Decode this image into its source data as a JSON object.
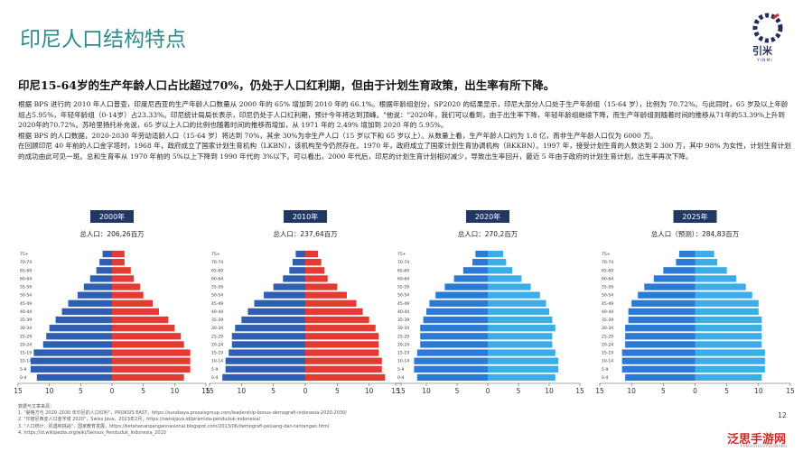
{
  "title": "印尼人口结构特点",
  "logo": {
    "name": "引米",
    "latin": "YINMI"
  },
  "subtitle": "印尼15-64岁的生产年龄人口占比超过70%，仍处于人口红利期，但由于计划生育政策，出生率有所下降。",
  "paragraphs": [
    "根据 BPS 进行的 2010 年人口普查，印度尼西亚的生产年龄人口数量从 2000 年的 65% 增加到 2010 年的 66.1%。根据年龄组划分，SP2020 的结果显示，印尼大部分人口处于生产年龄组（15-64 岁），比例为 70.72%。与此同时，65 岁及以上年龄组占5.95%，年轻年龄组（0-14岁）占23.33%。印尼统计局局长表示，印尼仍处于人口红利期，预计今年将达到顶峰。\"他说：\"2020年，我们可以看到，由于出生率下降，年轻年龄组继续下降，而生产年龄组则随着时间的推移从71年的53.39%上升到2020年的70.72%。苏哈里扬托补充说，65 岁以上人口的比例也随着时间的推移而增加，从 1971 年的 2.49% 增加到 2020 年的 5.95%。",
    "根据 BPS 的人口数据，2020-2030 年劳动适龄人口（15-64 岁）将达到 70%，其余 30%为非生产人口（15 岁以下和 65 岁以上）。从数量上看，生产年龄人口约为 1.8 亿，而非生产年龄人口仅为 6000 万。",
    "在回顾印尼 40 年前的人口金字塔时，1968 年，政府成立了国家计划生育机构（LKBN），该机构至今仍然存在。1970 年，政府成立了国家计划生育协调机构（BKKBN）。1997 年，接受计划生育的人数达到 2 300 万，其中 98% 为女性，计划生育计划的成功由此可见一斑。总和生育率从 1970 年前的 5%以上下降到 1990 年代的 3%以下。可以看出，2000 年代后，印尼的计划生育计划相对减少，导致出生率回升，最近 5 年由于政府的计划生育计划，出生率再次下降。"
  ],
  "sources": {
    "heading": "数据与文章来源：",
    "items": [
      "1. \"婴格方与 2020–2030 年印尼的人口红利\"，PROKSIS EAST，https://surabaya.proxsisgroup.com/leadership-bonus-demografi-indonesia-2020-2030/",
      "2. \"印度尼西亚人口金字塔 2020\"，Swiss Java，2023年2月，https://swissjava.id/piramida-penduduk-indonesia/",
      "3. \"人口统计、机遇和挑战\"，国家教育发展，https://ketahananpangannasional.blogspot.com/2013/06/demografi-peluang-dan-tantangan.html",
      "4. https://id.wikipedia.org/wiki/Sensus_Penduduk_Indonesia_2010"
    ]
  },
  "page_number": "12",
  "watermark": {
    "name": "泛思手游网",
    "latin": "FANSISHOUYOUWANG"
  },
  "chart_data": [
    {
      "type": "pyramid",
      "title": "2000年",
      "subtitle": "总人口：206,26百万",
      "categories": [
        "0-4",
        "5-9",
        "10-14",
        "15-19",
        "20-24",
        "25-29",
        "30-34",
        "35-39",
        "40-44",
        "45-49",
        "50-54",
        "55-59",
        "60-64",
        "65-69",
        "70-74",
        "75+"
      ],
      "series": [
        {
          "color": "#2f5fb3",
          "values": [
            -12,
            -13,
            -13,
            -12.5,
            -11,
            -10.5,
            -10,
            -9,
            -8,
            -7,
            -5.5,
            -4.5,
            -3.5,
            -2.5,
            -2,
            -1.5
          ]
        },
        {
          "color": "#e43a34",
          "values": [
            11.5,
            12.5,
            12.5,
            12.5,
            11.5,
            11,
            10,
            9,
            7.5,
            6.5,
            5,
            4.5,
            3.5,
            3,
            2,
            2
          ]
        }
      ],
      "xlim": [
        -15,
        15
      ],
      "xticks": [
        {
          "value": -15,
          "label": "15"
        },
        {
          "value": -10,
          "label": "10"
        },
        {
          "value": -5,
          "label": "5"
        },
        0,
        5,
        10,
        15
      ]
    },
    {
      "type": "pyramid",
      "title": "2010年",
      "subtitle": "总人口：237,64百万",
      "categories": [
        "0-4",
        "5-9",
        "10-14",
        "15-19",
        "20-24",
        "25-29",
        "30-34",
        "35-39",
        "40-44",
        "45-49",
        "50-54",
        "55-59",
        "60-64",
        "65-69",
        "70-74",
        "75+"
      ],
      "series": [
        {
          "color": "#2f5fb3",
          "values": [
            -13,
            -12.5,
            -12.5,
            -12,
            -11.5,
            -11.5,
            -11,
            -10,
            -9,
            -8,
            -6.5,
            -5,
            -3.5,
            -2.5,
            -2,
            -1.5
          ]
        },
        {
          "color": "#e43a34",
          "values": [
            12.5,
            12,
            12,
            11.5,
            11.5,
            11.5,
            11,
            10,
            9,
            8,
            6.5,
            5,
            3.5,
            3,
            2.5,
            2
          ]
        }
      ],
      "xlim": [
        -15,
        15
      ],
      "xticks": [
        {
          "value": -15,
          "label": "15"
        },
        {
          "value": -10,
          "label": "10"
        },
        {
          "value": -5,
          "label": "5"
        },
        0,
        5,
        10,
        15
      ]
    },
    {
      "type": "pyramid",
      "title": "2020年",
      "subtitle": "总人口：270,2百万",
      "categories": [
        "0-4",
        "5-9",
        "10-14",
        "15-19",
        "20-24",
        "25-29",
        "30-34",
        "35-39",
        "40-44",
        "45-49",
        "50-54",
        "55-59",
        "60-64",
        "65-69",
        "70-74",
        "75+"
      ],
      "series": [
        {
          "color": "#2a7ad6",
          "values": [
            -11.5,
            -12,
            -12,
            -11.5,
            -11,
            -11,
            -11,
            -10.5,
            -10,
            -9.5,
            -8.5,
            -7,
            -5.5,
            -4,
            -2.5,
            -2
          ]
        },
        {
          "color": "#3dade8",
          "values": [
            11,
            11.5,
            11.5,
            11,
            10.5,
            10.5,
            11,
            10.5,
            10,
            9.5,
            8.5,
            7,
            5.5,
            4,
            3,
            2.5
          ]
        }
      ],
      "xlim": [
        -15,
        15
      ],
      "xticks": [
        {
          "value": -15,
          "label": "15"
        },
        {
          "value": -10,
          "label": "10"
        },
        {
          "value": -5,
          "label": "5"
        },
        0,
        5,
        10,
        15
      ]
    },
    {
      "type": "pyramid",
      "title": "2025年",
      "subtitle": "总人口（预测）：284,83百万",
      "categories": [
        "0-4",
        "5-9",
        "10-14",
        "15-19",
        "20-24",
        "25-29",
        "30-34",
        "35-39",
        "40-44",
        "45-49",
        "50-54",
        "55-59",
        "60-64",
        "65-69",
        "70-74",
        "75+"
      ],
      "series": [
        {
          "color": "#2a7ad6",
          "values": [
            -11,
            -11.5,
            -11.5,
            -11.5,
            -11,
            -11,
            -11,
            -10.5,
            -10.5,
            -10,
            -9,
            -8,
            -6.5,
            -5,
            -3,
            -2.5
          ]
        },
        {
          "color": "#3dade8",
          "values": [
            10.5,
            11,
            11,
            11,
            10.5,
            10.5,
            10.5,
            10.5,
            10,
            10,
            9,
            8,
            6.5,
            5,
            3.5,
            3
          ]
        }
      ],
      "xlim": [
        -15,
        15
      ],
      "xticks": [
        {
          "value": -15,
          "label": "15"
        },
        {
          "value": -10,
          "label": "10"
        },
        {
          "value": -5,
          "label": "5"
        },
        0,
        5,
        10,
        15
      ]
    }
  ]
}
